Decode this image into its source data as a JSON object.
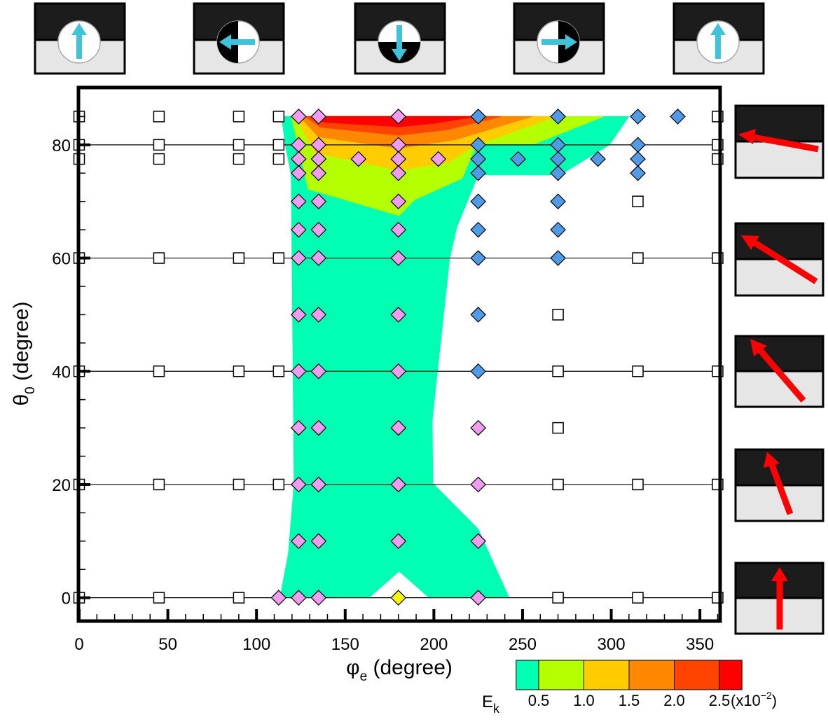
{
  "chart_data": {
    "type": "scatter",
    "xlabel": "φ",
    "xlabel_sub": "e",
    "xlabel_rest": " (degree)",
    "ylabel": "θ",
    "ylabel_sub": "0",
    "ylabel_rest": " (degree)",
    "xlim": [
      0,
      361
    ],
    "ylim": [
      -4,
      90
    ],
    "xticks": [
      0,
      50,
      100,
      150,
      200,
      250,
      300,
      350
    ],
    "yticks": [
      0,
      20,
      40,
      60,
      80
    ],
    "xminor_ticks": [
      10,
      20,
      30,
      40,
      60,
      70,
      80,
      90,
      110,
      120,
      130,
      140,
      160,
      170,
      180,
      190,
      210,
      220,
      230,
      240,
      260,
      270,
      280,
      290,
      310,
      320,
      330,
      340,
      360
    ],
    "yminor_ticks": [
      5,
      10,
      15,
      25,
      30,
      35,
      45,
      50,
      55,
      65,
      70,
      75,
      85
    ],
    "grid": true,
    "contours": [
      {
        "color": "#00ffb3",
        "x": [
          114.1,
          116.5,
          119.6,
          121.2,
          118.0,
          113.3,
          163.4,
          180.4,
          197.4,
          242.4,
          225.0,
          199.4,
          199.0,
          208.8,
          212.8,
          225.0,
          271.2,
          298.9,
          309.9
        ],
        "y": [
          85,
          79.6,
          74.7,
          20.2,
          7.8,
          0,
          0,
          4.7,
          0,
          0,
          12.1,
          20.2,
          31.3,
          59.8,
          65.4,
          74.7,
          74.7,
          80.0,
          85
        ]
      },
      {
        "color": "#b4ff00",
        "x": [
          119.6,
          129.1,
          180.4,
          189.1,
          216.0,
          223.8,
          255.4,
          295.7
        ],
        "y": [
          85,
          72.2,
          67.5,
          70.3,
          74.1,
          80.0,
          80.0,
          85
        ]
      },
      {
        "color": "#ffcc00",
        "x": [
          122.0,
          133.0,
          180.4,
          208.1,
          223.8,
          269.2
        ],
        "y": [
          85,
          78.6,
          75.5,
          76.9,
          80.0,
          85
        ]
      },
      {
        "color": "#ff8800",
        "x": [
          124.4,
          135.0,
          180.4,
          212.0,
          255.4
        ],
        "y": [
          85,
          81.4,
          79.4,
          80.9,
          85
        ]
      },
      {
        "color": "#ff4400",
        "x": [
          127.5,
          136.2,
          180.4,
          208.1,
          237.7
        ],
        "y": [
          85,
          83.1,
          81.7,
          82.7,
          85
        ]
      },
      {
        "color": "#ff0000",
        "x": [
          132.3,
          137.8,
          180.4,
          200.2,
          223.8
        ],
        "y": [
          85,
          84.0,
          83.2,
          83.8,
          85
        ]
      }
    ],
    "series": [
      {
        "marker": "square",
        "color": "#ffffff",
        "x": [
          0,
          45,
          90,
          112.5,
          360,
          0,
          45,
          90,
          112.5,
          360,
          0,
          45,
          90,
          112.5,
          360,
          315,
          0,
          45,
          90,
          112.5,
          315,
          360,
          270,
          0,
          45,
          90,
          112.5,
          270,
          315,
          360,
          270,
          0,
          45,
          90,
          112.5,
          270,
          315,
          360,
          0,
          45,
          90,
          270,
          315,
          360
        ],
        "y": [
          85,
          85,
          85,
          85,
          85,
          80,
          80,
          80,
          80,
          80,
          77.5,
          77.5,
          77.5,
          77.5,
          77.5,
          70,
          60,
          60,
          60,
          60,
          60,
          60,
          50,
          40,
          40,
          40,
          40,
          40,
          40,
          40,
          30,
          20,
          20,
          20,
          20,
          20,
          20,
          20,
          0,
          0,
          0,
          0,
          0,
          0
        ]
      },
      {
        "marker": "diamond",
        "color": "#f09cf0",
        "x": [
          123.75,
          135,
          180,
          123.75,
          135,
          180,
          123.75,
          135,
          157.5,
          180,
          202.5,
          123.75,
          135,
          180,
          123.75,
          135,
          180,
          123.75,
          135,
          180,
          123.75,
          135,
          180,
          123.75,
          135,
          180,
          123.75,
          135,
          180,
          123.75,
          135,
          180,
          225,
          123.75,
          135,
          180,
          225,
          123.75,
          135,
          180,
          225,
          112.5,
          123.75,
          135,
          225
        ],
        "y": [
          85,
          85,
          85,
          80,
          80,
          80,
          77.5,
          77.5,
          77.5,
          77.5,
          77.5,
          75,
          75,
          75,
          70,
          70,
          70,
          65,
          65,
          65,
          60,
          60,
          60,
          50,
          50,
          50,
          40,
          40,
          40,
          30,
          30,
          30,
          30,
          20,
          20,
          20,
          20,
          10,
          10,
          10,
          10,
          0,
          0,
          0,
          0
        ]
      },
      {
        "marker": "diamond",
        "color": "#4f9be8",
        "x": [
          225,
          270,
          315,
          337.5,
          225,
          270,
          315,
          225,
          247.5,
          270,
          292.5,
          315,
          225,
          270,
          315,
          225,
          270,
          225,
          270,
          225,
          270,
          225,
          225
        ],
        "y": [
          85,
          85,
          85,
          85,
          80,
          80,
          80,
          77.5,
          77.5,
          77.5,
          77.5,
          77.5,
          75,
          75,
          75,
          70,
          70,
          65,
          65,
          60,
          60,
          50,
          40
        ]
      },
      {
        "marker": "diamond",
        "color": "#f5f500",
        "x": [
          180
        ],
        "y": [
          0
        ]
      }
    ],
    "colorbar": {
      "colors": [
        "#00ffb3",
        "#b4ff00",
        "#ffcc00",
        "#ff8800",
        "#ff4400",
        "#ff0000"
      ],
      "ticks": [
        {
          "value": 0.5,
          "label": "0.5"
        },
        {
          "value": 1.0,
          "label": "1.0"
        },
        {
          "value": 1.5,
          "label": "1.5"
        },
        {
          "value": 2.0,
          "label": "2.0"
        },
        {
          "value": 2.5,
          "label": "2.5"
        }
      ],
      "label": "E",
      "label_sub": "k",
      "unit": "(x10",
      "unit_sup": "−2",
      "unit_end": ")"
    }
  }
}
